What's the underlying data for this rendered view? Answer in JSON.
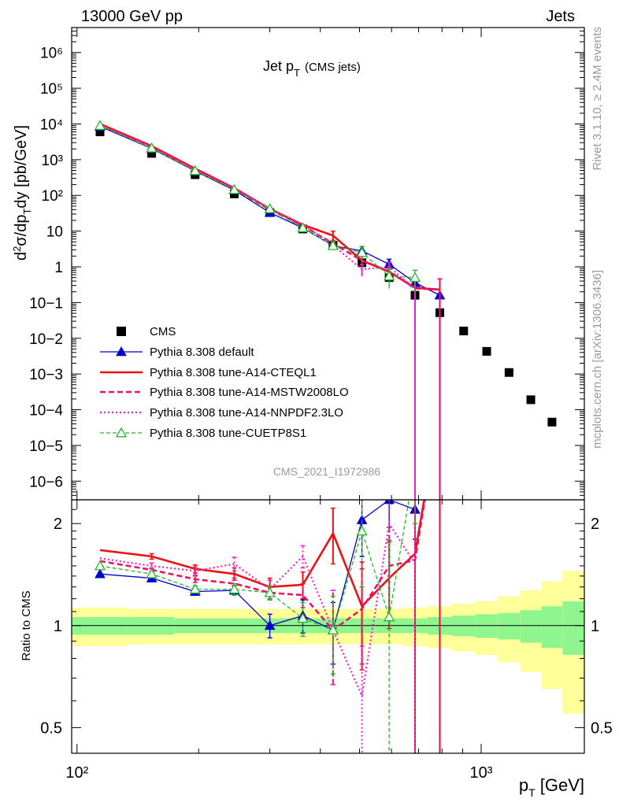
{
  "header": {
    "left": "13000 GeV pp",
    "right": "Jets"
  },
  "side_labels": {
    "rivet": "Rivet 3.1.10, ≥ 2.4M events",
    "mcplots": "mcplots.cern.ch [arXiv:1306.3436]"
  },
  "analysis_id": "CMS_2021_I1972986",
  "colors": {
    "cms": "#000000",
    "default": "#0000cc",
    "cteql1": "#ee1111",
    "mstw": "#ee1166",
    "nnpdf": "#ee22cc",
    "cuetp8s1": "#22bb22",
    "band_inner": "#8ff58f",
    "band_outer": "#ffff99"
  },
  "chart_data": [
    {
      "type": "line",
      "panel": "main",
      "title": "Jet p_T (CMS jets)",
      "title_main": "Jet p",
      "title_sub": "T",
      "title_tail": "(CMS jets)",
      "xlabel": "p_T [GeV]",
      "ylabel": "d²σ/dp_T dy [pb/GeV]",
      "x_scale": "log",
      "y_scale": "log",
      "xlim": [
        97,
        1800
      ],
      "ylim": [
        3e-07,
        5000000.0
      ],
      "y_tick_labels": [
        "10−6",
        "10−5",
        "10−4",
        "10−3",
        "10−2",
        "10−1",
        "1",
        "10",
        "10²",
        "10³",
        "10⁴",
        "10⁵",
        "10⁶"
      ],
      "x_tick_labels": [
        "10²",
        "10³"
      ],
      "legend_position": "bottom-left",
      "series": [
        {
          "name": "CMS",
          "style": "black squares",
          "x": [
            114,
            153,
            196,
            245,
            300,
            362,
            430,
            507,
            592,
            686,
            790,
            905,
            1032,
            1172,
            1327,
            1497
          ],
          "y": [
            6000,
            1500,
            380,
            110,
            33,
            11.5,
            4.0,
            1.3,
            0.5,
            0.16,
            0.052,
            0.016,
            0.0043,
            0.0011,
            0.00019,
            4.5e-05
          ]
        },
        {
          "name": "Pythia 8.308 default",
          "style": "blue solid, filled triangles",
          "x": [
            114,
            153,
            196,
            245,
            300,
            362,
            430,
            507,
            592,
            686,
            790
          ],
          "y": [
            8500,
            2050,
            480,
            140,
            33,
            12.2,
            3.9,
            2.8,
            1.18,
            0.36,
            0.16
          ],
          "err": [
            0,
            0,
            0,
            0,
            0,
            0,
            0.8,
            0.9,
            0.45,
            0.15,
            0
          ]
        },
        {
          "name": "Pythia 8.308 tune-A14-CTEQL1",
          "style": "red thick solid",
          "x": [
            114,
            153,
            196,
            245,
            300,
            362,
            430,
            507,
            592,
            686,
            790
          ],
          "y": [
            10000,
            2400,
            560,
            160,
            42,
            15,
            7.5,
            1.5,
            0.72,
            0.26,
            0.23
          ],
          "err": [
            0,
            0,
            0,
            0,
            0,
            0,
            2.5,
            0.5,
            0.25,
            0.25,
            0.23
          ]
        },
        {
          "name": "Pythia 8.308 tune-A14-MSTW2008LO",
          "style": "pink-red dashed",
          "x": [
            114,
            153,
            196,
            245,
            300,
            362,
            430,
            507,
            592,
            686,
            790
          ],
          "y": [
            9200,
            2200,
            520,
            150,
            40,
            14,
            4.5,
            1.5,
            0.75,
            0.25,
            0.23
          ],
          "err": [
            0,
            0,
            0,
            0,
            0,
            0,
            1.0,
            0.5,
            0.25,
            0.25,
            0.23
          ]
        },
        {
          "name": "Pythia 8.308 tune-A14-NNPDF2.3LO",
          "style": "magenta dotted",
          "x": [
            114,
            153,
            196,
            245,
            300,
            362,
            430,
            507,
            592,
            686
          ],
          "y": [
            9500,
            2250,
            510,
            160,
            40,
            15.5,
            4.0,
            0.85,
            1.0,
            0.24
          ],
          "err": [
            0,
            0,
            0,
            0,
            0,
            0,
            1.0,
            0.3,
            0.35,
            0.24
          ]
        },
        {
          "name": "Pythia 8.308 tune-CUETP8S1",
          "style": "green dashed, open triangles",
          "x": [
            114,
            153,
            196,
            245,
            300,
            362,
            430,
            507,
            592,
            686
          ],
          "y": [
            9000,
            2100,
            490,
            145,
            42,
            12.3,
            3.9,
            2.5,
            0.55,
            0.5
          ],
          "err": [
            0,
            0,
            0,
            0,
            0,
            0,
            0.9,
            1.2,
            0.3,
            0.3
          ]
        }
      ]
    },
    {
      "type": "line",
      "panel": "ratio",
      "ylabel": "Ratio to CMS",
      "x_scale": "log",
      "y_scale": "log",
      "xlim": [
        97,
        1800
      ],
      "ylim": [
        0.42,
        2.35
      ],
      "y_ticks": [
        0.5,
        1,
        2
      ],
      "y_tick_labels": [
        "0.5",
        "1",
        "2"
      ],
      "band_edges": [
        97,
        133,
        174,
        219,
        271,
        330,
        395,
        468,
        549,
        637,
        735,
        845,
        966,
        1100,
        1250,
        1410,
        1590,
        1800
      ],
      "band_inner": [
        0.06,
        0.06,
        0.05,
        0.05,
        0.05,
        0.05,
        0.05,
        0.05,
        0.05,
        0.05,
        0.06,
        0.07,
        0.08,
        0.09,
        0.11,
        0.14,
        0.18
      ],
      "band_outer": [
        0.13,
        0.12,
        0.12,
        0.12,
        0.12,
        0.12,
        0.12,
        0.12,
        0.12,
        0.13,
        0.14,
        0.16,
        0.18,
        0.22,
        0.27,
        0.35,
        0.45
      ],
      "series": [
        {
          "name": "Pythia 8.308 default",
          "x": [
            114,
            153,
            196,
            245,
            300,
            362,
            430,
            507,
            592,
            686
          ],
          "y": [
            1.42,
            1.38,
            1.26,
            1.27,
            1.0,
            1.07,
            0.97,
            2.05,
            2.35,
            2.2
          ],
          "err": [
            0,
            0.02,
            0.03,
            0.04,
            0.08,
            0.12,
            0.2,
            0.45,
            0.4,
            0.4
          ]
        },
        {
          "name": "Pythia 8.308 tune-A14-CTEQL1",
          "x": [
            114,
            153,
            196,
            245,
            300,
            362,
            430,
            507,
            592,
            686,
            790
          ],
          "y": [
            1.67,
            1.6,
            1.47,
            1.42,
            1.3,
            1.32,
            1.87,
            1.14,
            1.38,
            1.63,
            4.4
          ],
          "err": [
            0,
            0.03,
            0.04,
            0.06,
            0.08,
            0.12,
            0.35,
            0.4,
            0.4,
            1.6,
            4.4
          ]
        },
        {
          "name": "Pythia 8.308 tune-A14-MSTW2008LO",
          "x": [
            114,
            153,
            196,
            245,
            300,
            362,
            430,
            507,
            592,
            686,
            790
          ],
          "y": [
            1.55,
            1.46,
            1.37,
            1.33,
            1.25,
            1.23,
            0.97,
            1.12,
            1.5,
            1.56,
            4.4
          ],
          "err": [
            0,
            0.02,
            0.03,
            0.05,
            0.06,
            0.1,
            0.3,
            0.35,
            0.45,
            1.56,
            4.4
          ]
        },
        {
          "name": "Pythia 8.308 tune-A14-NNPDF2.3LO",
          "x": [
            114,
            153,
            196,
            245,
            300,
            362,
            430,
            507,
            592,
            686
          ],
          "y": [
            1.58,
            1.5,
            1.45,
            1.52,
            1.28,
            1.6,
            0.97,
            0.62,
            2.0,
            1.52
          ],
          "err": [
            0,
            0.03,
            0.04,
            0.07,
            0.08,
            0.12,
            0.3,
            0.25,
            0.6,
            1.52
          ]
        },
        {
          "name": "Pythia 8.308 tune-CUETP8S1",
          "x": [
            114,
            153,
            196,
            245,
            300,
            362,
            430,
            507,
            592,
            686
          ],
          "y": [
            1.5,
            1.42,
            1.28,
            1.28,
            1.25,
            1.05,
            0.97,
            1.9,
            1.06,
            3.0
          ],
          "err": [
            0,
            0.02,
            0.03,
            0.05,
            0.06,
            0.12,
            0.25,
            0.6,
            0.7,
            1.0
          ]
        }
      ]
    }
  ]
}
